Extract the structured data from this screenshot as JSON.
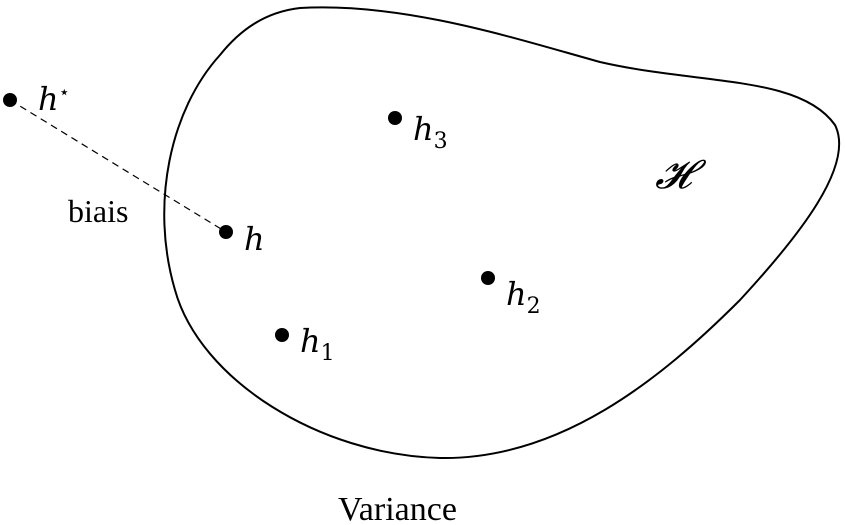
{
  "set_label": "𝓗",
  "bias_label": "biais",
  "variance_label": "Variance",
  "points": {
    "h_star": {
      "base": "h",
      "mark": "⋆"
    },
    "h": {
      "base": "h"
    },
    "h1": {
      "base": "h",
      "sub": "1"
    },
    "h2": {
      "base": "h",
      "sub": "2"
    },
    "h3": {
      "base": "h",
      "sub": "3"
    }
  },
  "colors": {
    "ink": "#000000",
    "background": "#ffffff"
  }
}
